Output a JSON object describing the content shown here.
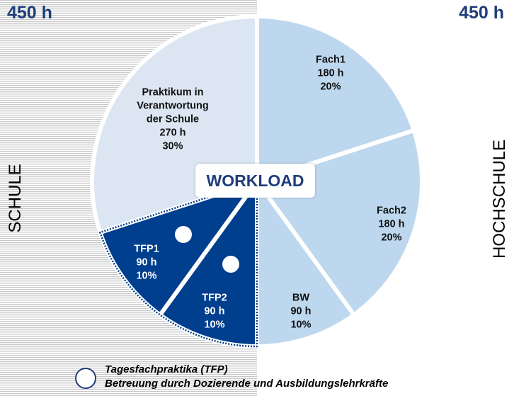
{
  "left_total": "450 h",
  "right_total": "450 h",
  "left_label": "SCHULE",
  "right_label": "HOCHSCHULE",
  "center_label": "WORKLOAD",
  "colors": {
    "light_segment": "#bdd7ee",
    "dark_segment": "#003f8e",
    "accent": "#1f3d7a"
  },
  "chart_data": {
    "type": "pie",
    "title": "",
    "slices": [
      {
        "label": "Fach1",
        "hours": 180,
        "percent": 20,
        "hours_text": "180 h",
        "percent_text": "20%",
        "side": "HOCHSCHULE"
      },
      {
        "label": "Fach2",
        "hours": 180,
        "percent": 20,
        "hours_text": "180 h",
        "percent_text": "20%",
        "side": "HOCHSCHULE"
      },
      {
        "label": "BW",
        "hours": 90,
        "percent": 10,
        "hours_text": "90 h",
        "percent_text": "10%",
        "side": "HOCHSCHULE"
      },
      {
        "label": "TFP2",
        "hours": 90,
        "percent": 10,
        "hours_text": "90 h",
        "percent_text": "10%",
        "side": "SCHULE"
      },
      {
        "label": "TFP1",
        "hours": 90,
        "percent": 10,
        "hours_text": "90 h",
        "percent_text": "10%",
        "side": "SCHULE"
      },
      {
        "label_lines": [
          "Praktikum in",
          "Verantwortung",
          "der Schule"
        ],
        "hours": 270,
        "percent": 30,
        "hours_text": "270 h",
        "percent_text": "30%",
        "side": "SCHULE"
      }
    ]
  },
  "legend": {
    "line1": "Tagesfachpraktika (TFP)",
    "line2": "Betreuung durch Dozierende und Ausbildungslehrkräfte"
  }
}
